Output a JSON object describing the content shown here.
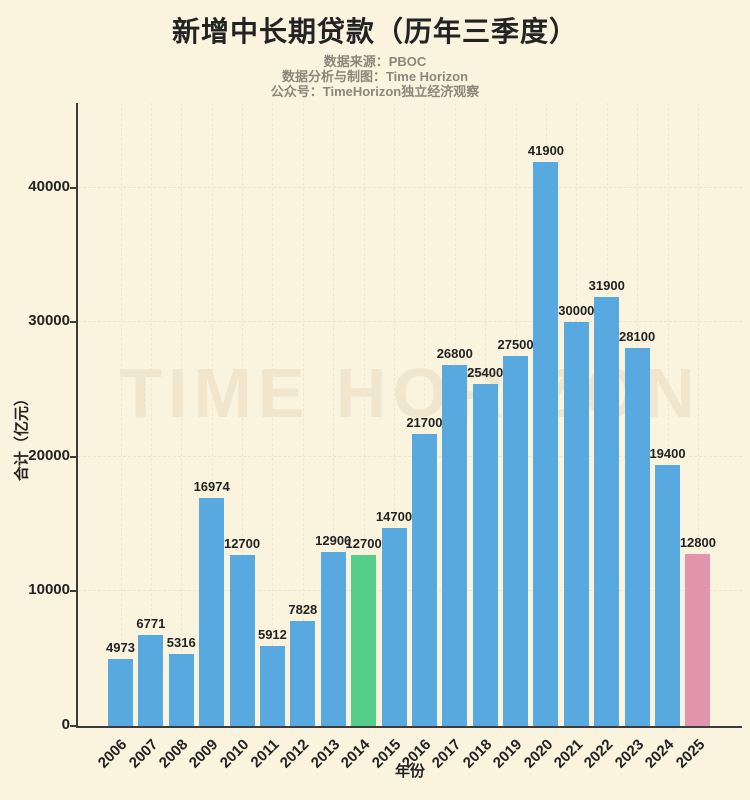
{
  "title": "新增中长期贷款（历年三季度）",
  "subtitle_lines": [
    "数据来源：PBOC",
    "数据分析与制图：Time Horizon",
    "公众号：TimeHorizon独立经济观察"
  ],
  "watermark": "TIME HORIZON",
  "chart_data": {
    "type": "bar",
    "title": "新增中长期贷款（历年三季度）",
    "xlabel": "年份",
    "ylabel": "合计（亿元）",
    "categories": [
      "2006",
      "2007",
      "2008",
      "2009",
      "2010",
      "2011",
      "2012",
      "2013",
      "2014",
      "2015",
      "2016",
      "2017",
      "2018",
      "2019",
      "2020",
      "2021",
      "2022",
      "2023",
      "2024",
      "2025"
    ],
    "values": [
      4973,
      6771,
      5316,
      16974,
      12700,
      5912,
      7828,
      12900,
      12700,
      14700,
      21700,
      26800,
      25400,
      27500,
      41900,
      30000,
      31900,
      28100,
      19400,
      12800
    ],
    "value_labels": [
      "4973",
      "6771",
      "5316",
      "16974",
      "12700",
      "5912",
      "7828",
      "12900",
      "12700",
      "14700",
      "21700",
      "26800",
      "25400",
      "27500",
      "41900",
      "30000",
      "31900",
      "28100",
      "19400",
      "12800"
    ],
    "yticks": [
      0,
      10000,
      20000,
      30000,
      40000
    ],
    "ylim": [
      0,
      46300
    ],
    "grid": true,
    "legend": "none",
    "colors": {
      "default": "#57a9e0",
      "2014": "#56cd89",
      "2025": "#e294ad"
    }
  },
  "theme_colors": {
    "background": "#faf3de",
    "title_text": "#232323",
    "subtitle_text": "#8b887b",
    "axis": "#3c3c3c",
    "grid": "#ede4cb",
    "watermark": "#efe6cd"
  }
}
